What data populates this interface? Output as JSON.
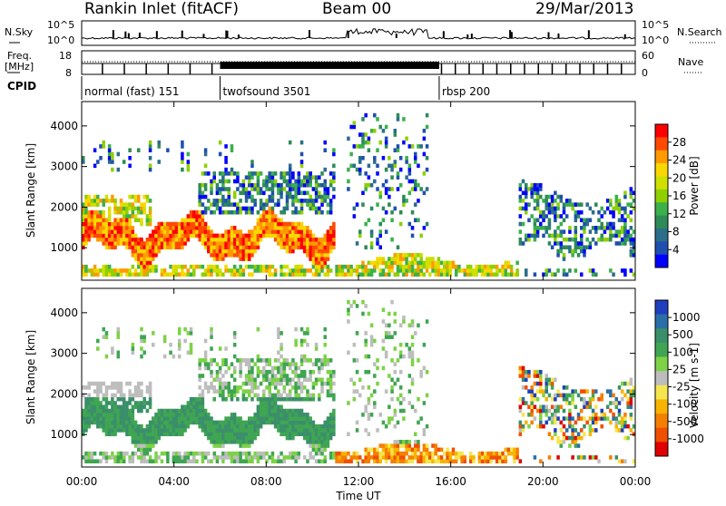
{
  "header": {
    "station": "Rankin Inlet (fitACF)",
    "beam": "Beam 00",
    "date": "29/Mar/2013"
  },
  "noise_panel": {
    "left_label": "N.Sky",
    "right_label": "N.Search",
    "left_ticks": [
      "10^5",
      "10^0"
    ],
    "right_ticks": [
      "10^5",
      "10^0"
    ]
  },
  "freq_panel": {
    "left_label_line1": "Freq.",
    "left_label_line2": "[MHz]",
    "left_ticks": [
      "18",
      "8"
    ],
    "right_ticks": [
      "60",
      "0"
    ],
    "right_label": "Nave"
  },
  "cpid": {
    "label": "CPID",
    "segments": [
      {
        "name": "normal (fast) 151",
        "start_h": 0,
        "end_h": 6.0
      },
      {
        "name": "twofsound 3501",
        "start_h": 6.0,
        "end_h": 15.5
      },
      {
        "name": "rbsp 200",
        "start_h": 15.5,
        "end_h": 24
      }
    ]
  },
  "power_colorbar": {
    "title": "Power [dB]",
    "ticks": [
      "28",
      "24",
      "20",
      "16",
      "12",
      "8",
      "4"
    ],
    "colors": [
      "#ff0000",
      "#ff4a00",
      "#ff9a00",
      "#f8d800",
      "#cfe000",
      "#8ed000",
      "#3bb04b",
      "#2e8b57",
      "#2a6e8a",
      "#1f4fb0",
      "#0000ff"
    ]
  },
  "velocity_colorbar": {
    "title": "Velocity [m s-1]",
    "ticks": [
      "1000",
      "500",
      "100",
      "25",
      "-25",
      "-100",
      "-500",
      "-1000"
    ],
    "colors": [
      "#1f3fbf",
      "#2a6ea8",
      "#3a8f6a",
      "#3fa552",
      "#7dd246",
      "#bdbdbd",
      "#f5e650",
      "#f8b400",
      "#f57f00",
      "#f04f00",
      "#e00000"
    ]
  },
  "chart_data": {
    "type": "heatmap",
    "xlabel": "Time UT",
    "ylabel": "Slant Range [km]",
    "x_tick_labels": [
      "00:00",
      "04:00",
      "08:00",
      "12:00",
      "16:00",
      "20:00",
      "00:00"
    ],
    "y_tick_labels": [
      "1000",
      "2000",
      "3000",
      "4000"
    ],
    "xlim": [
      0,
      24
    ],
    "ylim": [
      200,
      4600
    ],
    "panels": [
      {
        "name": "Power",
        "units": "dB",
        "range": [
          0,
          30
        ]
      },
      {
        "name": "Velocity",
        "units": "m s-1",
        "range": [
          -1000,
          1000
        ]
      }
    ],
    "features": [
      {
        "desc": "main scatter band",
        "t": [
          0.0,
          11.0
        ],
        "range_km": [
          800,
          1800
        ]
      },
      {
        "desc": "near-range scatter",
        "t": [
          11.0,
          19.0
        ],
        "range_km": [
          250,
          800
        ]
      },
      {
        "desc": "evening scatter",
        "t": [
          19.0,
          24.0
        ],
        "range_km": [
          800,
          2600
        ]
      }
    ]
  }
}
